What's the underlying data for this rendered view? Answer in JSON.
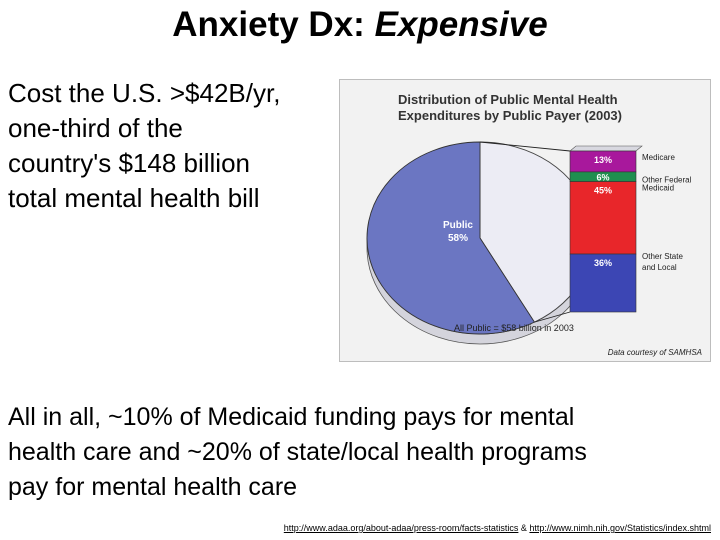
{
  "slide": {
    "title_main": "Anxiety Dx: ",
    "title_emph": "Expensive",
    "intro_lines": [
      "Cost the U.S. >$42B/yr,",
      "one-third of the",
      "country's $148 billion",
      "total mental health bill"
    ],
    "summary_lines": [
      "All in all, ~10% of Medicaid funding pays for mental",
      "health care and ~20% of state/local health programs",
      "pay for mental health care"
    ],
    "source_link_1": "http://www.adaa.org/about-adaa/press-room/facts-statistics",
    "source_sep": " & ",
    "source_link_2": "http://www.nimh.nih.gov/Statistics/index.shtml"
  },
  "colors": {
    "pie_public": "#6b76c2",
    "pie_other": "#ececf4",
    "medicare": "#a8189c",
    "other_federal": "#1f8f4f",
    "medicaid": "#e8262a",
    "other_state_local": "#3c46b4"
  },
  "chart_data": {
    "type": "pie",
    "title_line1": "Distribution of Public Mental Health",
    "title_line2": "Expenditures by Public Payer (2003)",
    "pie": {
      "slices": [
        {
          "label": "Public",
          "value": 58,
          "display": "58%"
        },
        {
          "label": "",
          "value": 42,
          "display": ""
        }
      ]
    },
    "breakdown": {
      "type": "stacked-bar",
      "segments": [
        {
          "label_lines": [
            "Medicare"
          ],
          "value": 13,
          "display": "13%",
          "color": "#a8189c"
        },
        {
          "label_lines": [
            "Other Federal"
          ],
          "value": 6,
          "display": "6%",
          "color": "#1f8f4f"
        },
        {
          "label_lines": [
            "Medicaid"
          ],
          "value": 45,
          "display": "45%",
          "color": "#e8262a"
        },
        {
          "label_lines": [
            "Other State",
            "and Local"
          ],
          "value": 36,
          "display": "36%",
          "color": "#3c46b4"
        }
      ]
    },
    "total_note": "All Public = $58 billion in 2003",
    "credit": "Data courtesy of SAMHSA"
  }
}
